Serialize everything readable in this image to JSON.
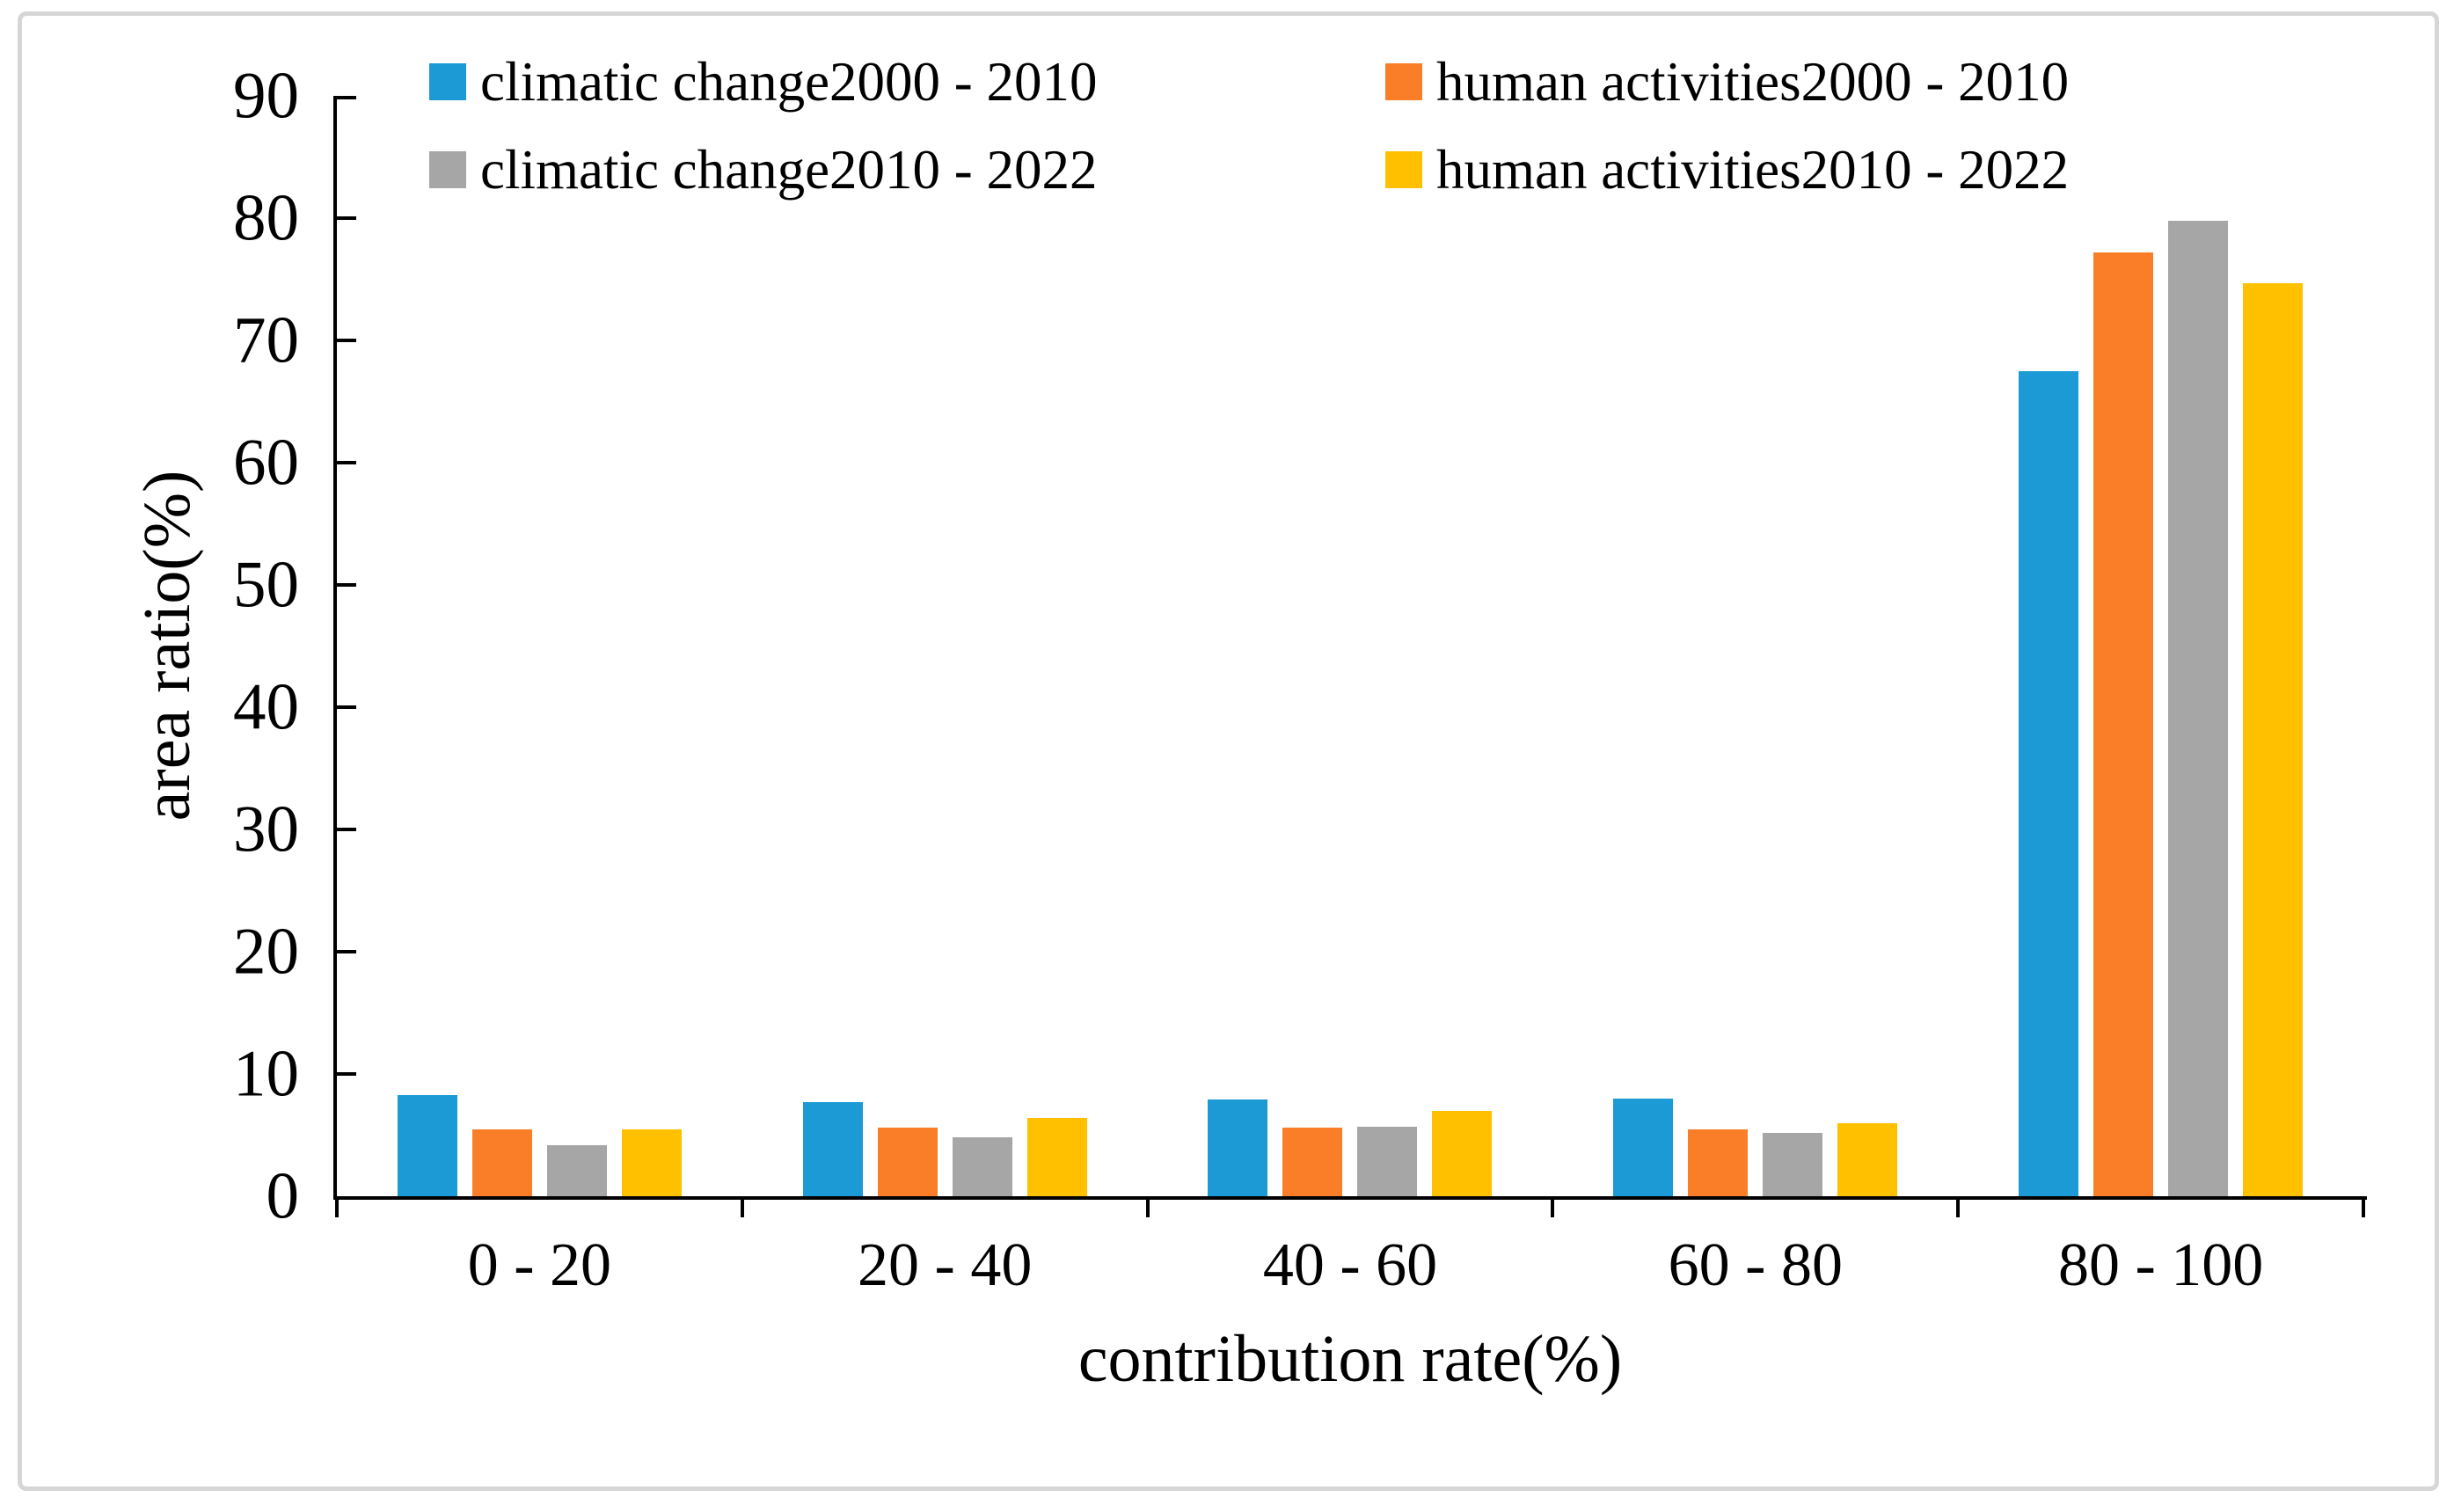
{
  "frame": {
    "background": "#FFFFFF",
    "border_color": "#D6D6D6"
  },
  "chart_data": {
    "type": "bar",
    "title": "",
    "xlabel": "contribution rate(%)",
    "ylabel": "area ratio(%)",
    "categories": [
      "0 - 20",
      "20 - 40",
      "40 - 60",
      "60 - 80",
      "80 - 100"
    ],
    "series": [
      {
        "name": "climatic change2000 - 2010",
        "color": "#1C9AD6",
        "values": [
          8.3,
          7.7,
          7.9,
          8.0,
          67.5
        ]
      },
      {
        "name": "human activities2000 - 2010",
        "color": "#F97E27",
        "values": [
          5.5,
          5.6,
          5.6,
          5.5,
          77.2
        ]
      },
      {
        "name": "climatic change2010 - 2022",
        "color": "#A6A6A6",
        "values": [
          4.2,
          4.8,
          5.7,
          5.2,
          79.8
        ]
      },
      {
        "name": "human activities2010 - 2022",
        "color": "#FFC000",
        "values": [
          5.5,
          6.4,
          7.0,
          6.0,
          74.7
        ]
      }
    ],
    "ylim": [
      0,
      90
    ],
    "yticks": [
      0,
      10,
      20,
      30,
      40,
      50,
      60,
      70,
      80,
      90
    ],
    "grid": false,
    "legend_position": "top",
    "legend_columns": 2,
    "bar_color_order_in_group": [
      "climatic change2000 - 2010",
      "human activities2000 - 2010",
      "climatic change2010 - 2022",
      "human activities2010 - 2022"
    ],
    "axis_color": "#000000",
    "text_color": "#000000"
  }
}
